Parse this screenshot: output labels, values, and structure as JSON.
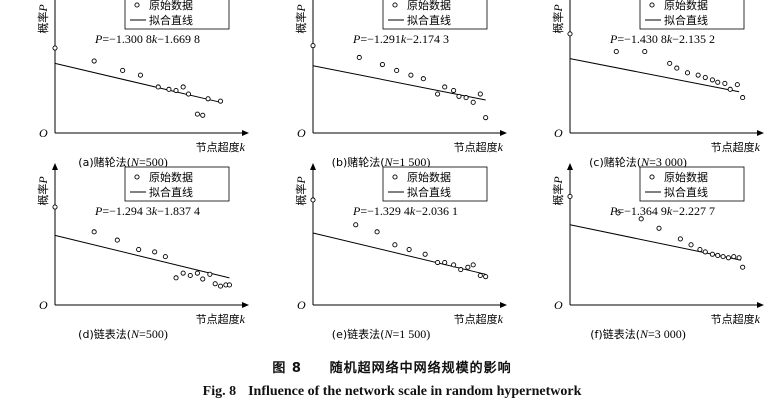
{
  "figure": {
    "caption_cn_label": "图 8",
    "caption_cn_text": "随机超网络中网络规模的影响",
    "caption_en_label": "Fig. 8",
    "caption_en_text": "Influence of the network scale in random hypernetwork"
  },
  "chart_data": [
    {
      "type": "scatter",
      "title": "(a)赌轮法(N=500)",
      "title_parts": {
        "pre": "(a)赌轮法(",
        "var": "N",
        "post": "=500)"
      },
      "ylabel": "概率",
      "ylabel_var": "P",
      "xlabel": "节点超度",
      "xlabel_var": "k",
      "origin_label": "O",
      "legend": {
        "points": "原始数据",
        "line": "拟合直线",
        "position": "top-right"
      },
      "equation": {
        "lhs": "P",
        "a": "=−1.300 8",
        "var": "k",
        "b": "−1.669 8"
      },
      "xlim": [
        0,
        10
      ],
      "ylim": [
        0,
        10
      ],
      "fit_line": {
        "x": [
          0,
          9.3
        ],
        "y": [
          5.9,
          2.6
        ]
      },
      "points": {
        "x": [
          0,
          2.2,
          3.8,
          4.8,
          5.8,
          6.4,
          6.8,
          7.2,
          7.5,
          8.0,
          8.3,
          8.6,
          9.3
        ],
        "y": [
          7.2,
          6.1,
          5.3,
          4.9,
          3.9,
          3.7,
          3.6,
          3.9,
          3.3,
          1.6,
          1.5,
          2.9,
          2.7
        ]
      }
    },
    {
      "type": "scatter",
      "title": "(b)赌轮法(N=1 500)",
      "title_parts": {
        "pre": "(b)赌轮法(",
        "var": "N",
        "post": "=1 500)"
      },
      "ylabel": "概率",
      "ylabel_var": "P",
      "xlabel": "节点超度",
      "xlabel_var": "k",
      "origin_label": "O",
      "legend": {
        "points": "原始数据",
        "line": "拟合直线",
        "position": "top-right"
      },
      "equation": {
        "lhs": "P",
        "a": "=−1.291",
        "var": "k",
        "b": "−2.174 3"
      },
      "xlim": [
        0,
        10
      ],
      "ylim": [
        0,
        10
      ],
      "fit_line": {
        "x": [
          0,
          9.7
        ],
        "y": [
          5.7,
          2.8
        ]
      },
      "points": {
        "x": [
          0,
          2.6,
          3.9,
          4.7,
          5.5,
          6.2,
          7.0,
          7.4,
          7.9,
          8.2,
          8.6,
          9.0,
          9.4,
          9.7
        ],
        "y": [
          7.4,
          6.4,
          5.8,
          5.3,
          4.9,
          4.6,
          3.3,
          3.9,
          3.6,
          3.1,
          3.0,
          2.6,
          3.3,
          1.3
        ]
      }
    },
    {
      "type": "scatter",
      "title": "(c)赌轮法(N=3 000)",
      "title_parts": {
        "pre": "(c)赌轮法(",
        "var": "N",
        "post": "=3 000)"
      },
      "ylabel": "概率",
      "ylabel_var": "P",
      "xlabel": "节点超度",
      "xlabel_var": "k",
      "origin_label": "O",
      "legend": {
        "points": "原始数据",
        "line": "拟合直线",
        "position": "top-right"
      },
      "equation": {
        "lhs": "P",
        "a": "=−1.430 8",
        "var": "k",
        "b": "−2.135 2"
      },
      "xlim": [
        0,
        10
      ],
      "ylim": [
        0,
        10
      ],
      "fit_line": {
        "x": [
          0,
          9.5
        ],
        "y": [
          6.3,
          3.5
        ]
      },
      "points": {
        "x": [
          0,
          2.6,
          4.2,
          5.6,
          6.0,
          6.6,
          7.2,
          7.6,
          8.0,
          8.3,
          8.7,
          9.0,
          9.4,
          9.7
        ],
        "y": [
          8.4,
          6.9,
          6.9,
          5.9,
          5.5,
          5.1,
          4.9,
          4.7,
          4.5,
          4.3,
          4.2,
          3.7,
          4.1,
          3.0
        ]
      }
    },
    {
      "type": "scatter",
      "title": "(d)链表法(N=500)",
      "title_parts": {
        "pre": "(d)链表法(",
        "var": "N",
        "post": "=500)"
      },
      "ylabel": "概率",
      "ylabel_var": "P",
      "xlabel": "节点超度",
      "xlabel_var": "k",
      "origin_label": "O",
      "legend": {
        "points": "原始数据",
        "line": "拟合直线",
        "position": "top-right"
      },
      "equation": {
        "lhs": "P",
        "a": "=−1.294 3",
        "var": "k",
        "b": "−1.837 4"
      },
      "xlim": [
        0,
        10
      ],
      "ylim": [
        0,
        10
      ],
      "fit_line": {
        "x": [
          0,
          9.8
        ],
        "y": [
          5.9,
          2.3
        ]
      },
      "points": {
        "x": [
          0,
          2.2,
          3.5,
          4.7,
          5.6,
          6.2,
          6.8,
          7.2,
          7.6,
          8.0,
          8.3,
          8.7,
          9.0,
          9.3,
          9.6,
          9.8
        ],
        "y": [
          8.3,
          6.2,
          5.5,
          4.7,
          4.5,
          4.1,
          2.3,
          2.7,
          2.5,
          2.7,
          2.2,
          2.6,
          1.8,
          1.6,
          1.7,
          1.7
        ]
      }
    },
    {
      "type": "scatter",
      "title": "(e)链表法(N=1 500)",
      "title_parts": {
        "pre": "(e)链表法(",
        "var": "N",
        "post": "=1 500)"
      },
      "ylabel": "概率",
      "ylabel_var": "P",
      "xlabel": "节点超度",
      "xlabel_var": "k",
      "origin_label": "O",
      "legend": {
        "points": "原始数据",
        "line": "拟合直线",
        "position": "top-right"
      },
      "equation": {
        "lhs": "P",
        "a": "=−1.329 4",
        "var": "k",
        "b": "−2.036 1"
      },
      "xlim": [
        0,
        10
      ],
      "ylim": [
        0,
        10
      ],
      "fit_line": {
        "x": [
          0,
          9.7
        ],
        "y": [
          6.1,
          2.6
        ]
      },
      "points": {
        "x": [
          0,
          2.4,
          3.6,
          4.6,
          5.4,
          6.3,
          7.0,
          7.4,
          7.9,
          8.3,
          8.7,
          9.0,
          9.4,
          9.7
        ],
        "y": [
          8.9,
          6.8,
          6.2,
          5.1,
          4.7,
          4.3,
          3.6,
          3.6,
          3.4,
          3.0,
          3.2,
          3.4,
          2.5,
          2.4
        ]
      }
    },
    {
      "type": "scatter",
      "title": "(f)链表法(N=3 000)",
      "title_parts": {
        "pre": "(f)链表法(",
        "var": "N",
        "post": "=3 000)"
      },
      "ylabel": "概率",
      "ylabel_var": "P",
      "xlabel": "节点超度",
      "xlabel_var": "k",
      "origin_label": "O",
      "legend": {
        "points": "原始数据",
        "line": "拟合直线",
        "position": "top-right"
      },
      "equation": {
        "lhs": "P",
        "a": "=−1.364 9",
        "var": "k",
        "b": "−2.227 7"
      },
      "xlim": [
        0,
        10
      ],
      "ylim": [
        0,
        10
      ],
      "fit_line": {
        "x": [
          0,
          9.6
        ],
        "y": [
          6.8,
          3.8
        ]
      },
      "points": {
        "x": [
          0,
          2.7,
          4.0,
          5.0,
          6.2,
          6.8,
          7.3,
          7.6,
          8.0,
          8.3,
          8.6,
          8.9,
          9.2,
          9.5,
          9.7
        ],
        "y": [
          9.2,
          7.8,
          7.3,
          6.5,
          5.6,
          5.1,
          4.7,
          4.5,
          4.3,
          4.2,
          4.1,
          4.0,
          4.1,
          4.0,
          3.2
        ]
      }
    }
  ]
}
